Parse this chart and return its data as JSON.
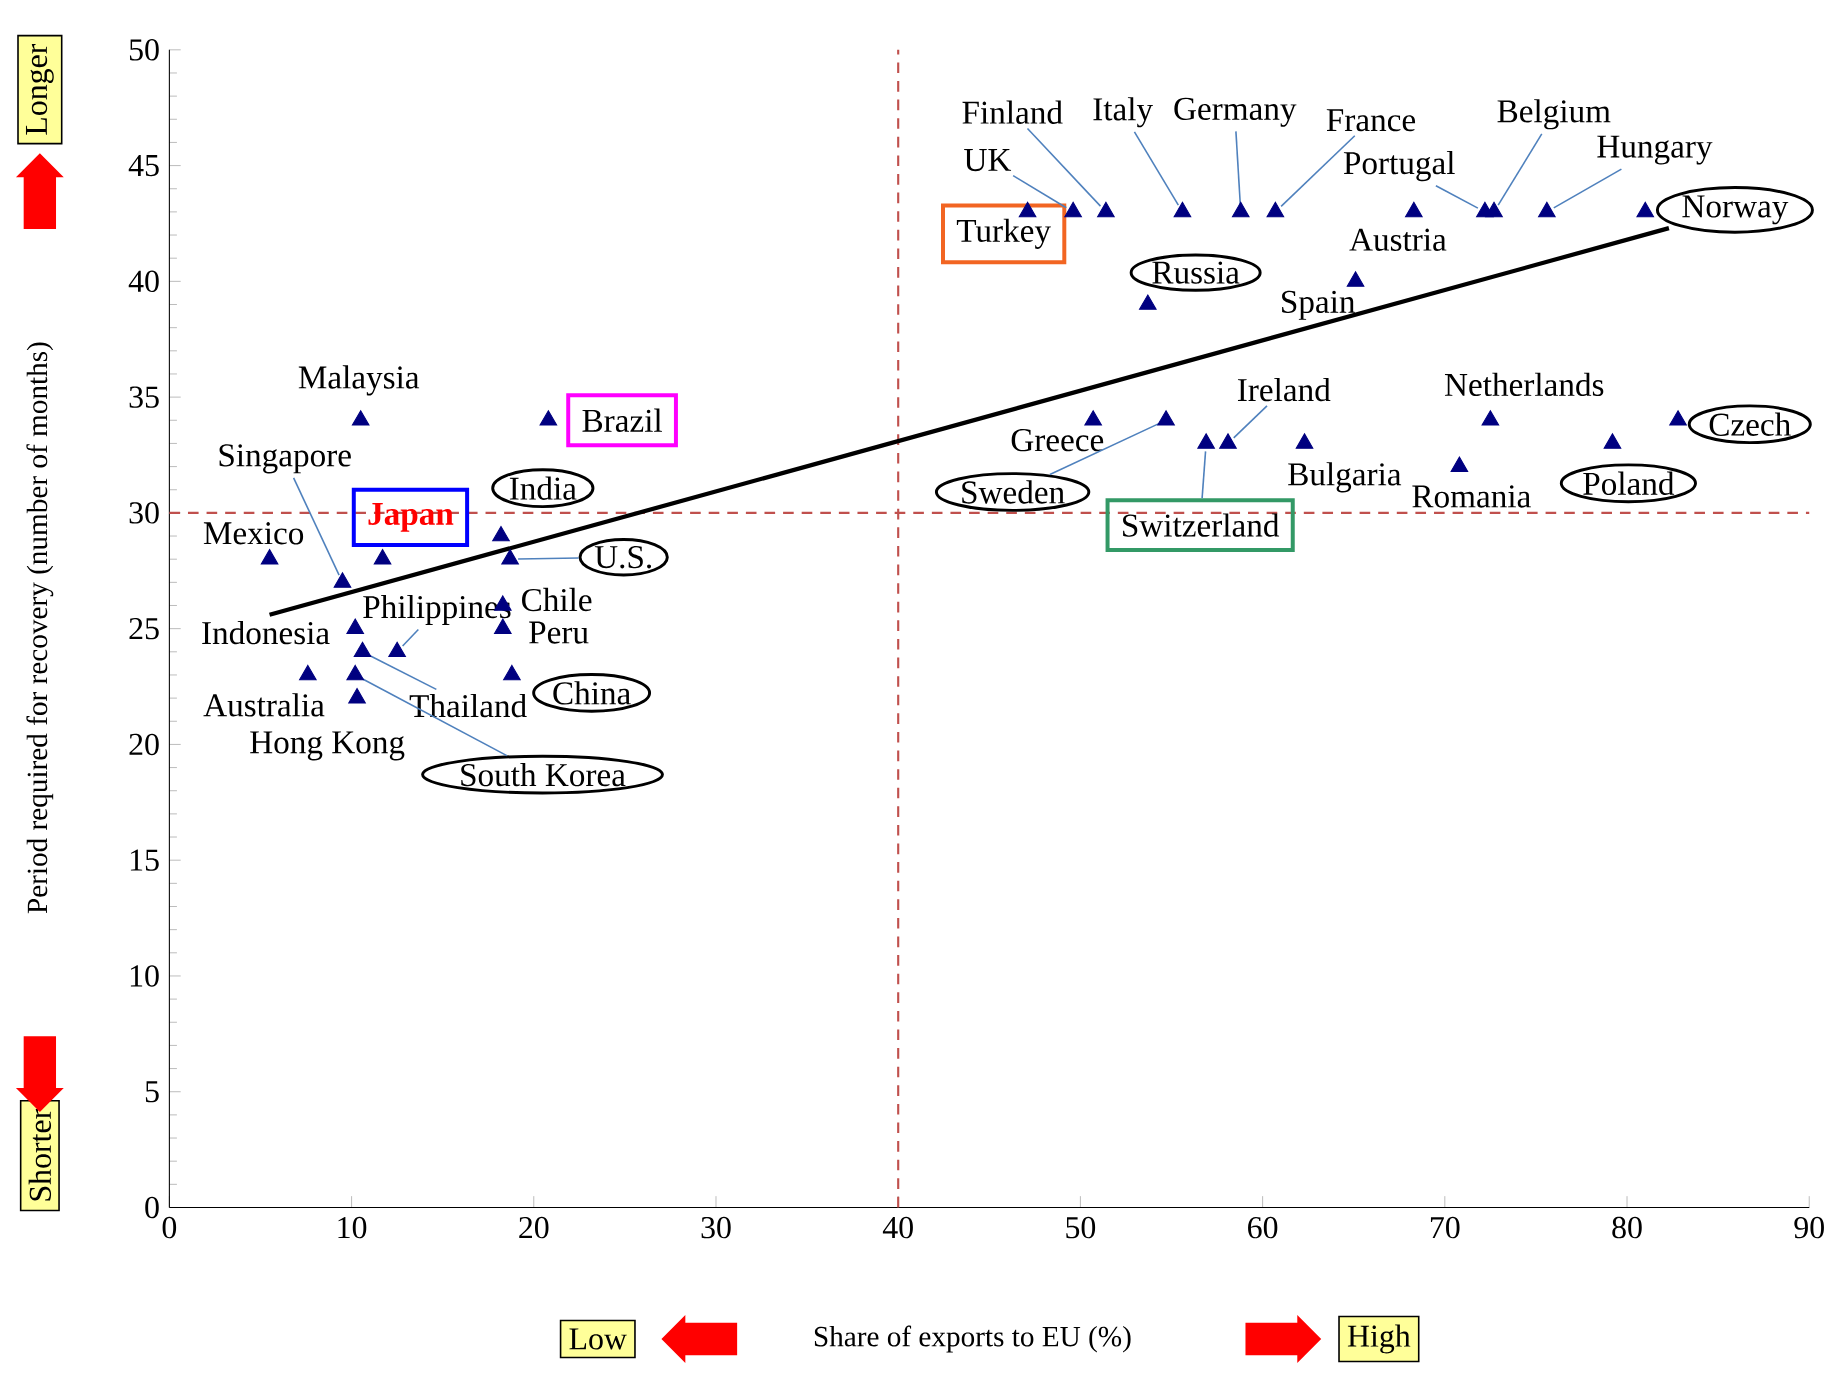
{
  "chart_data": {
    "type": "scatter",
    "xlabel": "Share of exports to EU (%)",
    "ylabel": "Period required for recovery (number of months)",
    "xlim": [
      0,
      90
    ],
    "ylim": [
      0,
      50
    ],
    "xticks": [
      0,
      10,
      20,
      30,
      40,
      50,
      60,
      70,
      80,
      90
    ],
    "yticks": [
      0,
      5,
      10,
      15,
      20,
      25,
      30,
      35,
      40,
      45,
      50
    ],
    "series": [
      {
        "marker": "triangle",
        "color": "#000080",
        "x": [
          10.5,
          20.8,
          18.2,
          18.7,
          11.7,
          5.5,
          9.5,
          18.3,
          18.3,
          10.2,
          10.6,
          12.5,
          7.6,
          10.2,
          10.3,
          18.8,
          47.1,
          49.6,
          51.4,
          55.6,
          58.8,
          60.7,
          68.3,
          72.2,
          72.7,
          75.6,
          81.0,
          53.7,
          65.1,
          50.7,
          54.7,
          56.9,
          58.1,
          62.3,
          72.5,
          70.8,
          79.2,
          82.8
        ],
        "values": [
          34,
          34,
          29,
          28,
          28,
          28,
          27,
          26,
          25,
          25,
          24,
          24,
          23,
          23,
          22,
          23,
          43,
          43,
          43,
          43,
          43,
          43,
          43,
          43,
          43,
          43,
          43,
          39,
          40,
          34,
          34,
          33,
          33,
          33,
          34,
          32,
          33,
          34
        ]
      },
      {
        "type": "line",
        "marker": "none",
        "color": "#000000",
        "x": [
          5.5,
          82.3
        ],
        "values": [
          25.6,
          42.3
        ]
      }
    ],
    "ref_lines": [
      {
        "axis": "x",
        "value": 40,
        "color": "#c0504d",
        "line_style": "dashed"
      },
      {
        "axis": "y",
        "value": 30,
        "color": "#c0504d",
        "line_style": "dashed"
      }
    ],
    "annotations": [
      {
        "text": "Malaysia",
        "x": 10.5,
        "y": 34
      },
      {
        "text": "Brazil",
        "x": 20.8,
        "y": 34
      },
      {
        "text": "India",
        "x": 18.2,
        "y": 29
      },
      {
        "text": "U.S.",
        "x": 18.7,
        "y": 28
      },
      {
        "text": "Japan",
        "x": 11.7,
        "y": 28
      },
      {
        "text": "Mexico",
        "x": 5.5,
        "y": 28
      },
      {
        "text": "Singapore",
        "x": 9.5,
        "y": 27
      },
      {
        "text": "Chile",
        "x": 18.3,
        "y": 26
      },
      {
        "text": "Peru",
        "x": 18.3,
        "y": 25
      },
      {
        "text": "Indonesia",
        "x": 10.2,
        "y": 25
      },
      {
        "text": "Thailand",
        "x": 10.6,
        "y": 24
      },
      {
        "text": "Philippines",
        "x": 12.5,
        "y": 24
      },
      {
        "text": "Australia",
        "x": 7.6,
        "y": 23
      },
      {
        "text": "South Korea",
        "x": 10.2,
        "y": 23
      },
      {
        "text": "Hong Kong",
        "x": 10.3,
        "y": 22
      },
      {
        "text": "China",
        "x": 18.8,
        "y": 23
      },
      {
        "text": "Turkey",
        "x": 47.1,
        "y": 43
      },
      {
        "text": "UK",
        "x": 49.6,
        "y": 43
      },
      {
        "text": "Finland",
        "x": 51.4,
        "y": 43
      },
      {
        "text": "Italy",
        "x": 55.6,
        "y": 43
      },
      {
        "text": "Germany",
        "x": 58.8,
        "y": 43
      },
      {
        "text": "France",
        "x": 60.7,
        "y": 43
      },
      {
        "text": "Austria",
        "x": 68.3,
        "y": 43
      },
      {
        "text": "Portugal",
        "x": 72.2,
        "y": 43
      },
      {
        "text": "Belgium",
        "x": 72.7,
        "y": 43
      },
      {
        "text": "Hungary",
        "x": 75.6,
        "y": 43
      },
      {
        "text": "Norway",
        "x": 81.0,
        "y": 43
      },
      {
        "text": "Russia",
        "x": 53.7,
        "y": 39
      },
      {
        "text": "Spain",
        "x": 65.1,
        "y": 40
      },
      {
        "text": "Greece",
        "x": 50.7,
        "y": 34
      },
      {
        "text": "Sweden",
        "x": 54.7,
        "y": 34
      },
      {
        "text": "Switzerland",
        "x": 56.9,
        "y": 33
      },
      {
        "text": "Ireland",
        "x": 58.1,
        "y": 33
      },
      {
        "text": "Bulgaria",
        "x": 62.3,
        "y": 33
      },
      {
        "text": "Netherlands",
        "x": 72.5,
        "y": 34
      },
      {
        "text": "Romania",
        "x": 70.8,
        "y": 32
      },
      {
        "text": "Poland",
        "x": 79.2,
        "y": 33
      },
      {
        "text": "Czech",
        "x": 82.8,
        "y": 34
      },
      "Longer",
      "Shorter",
      "Low",
      "High"
    ]
  }
}
